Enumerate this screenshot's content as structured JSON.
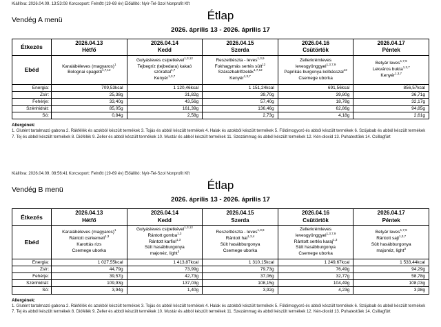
{
  "page": {
    "background": "#ffffff",
    "border_color": "#000000",
    "text_color": "#000000"
  },
  "sections": [
    {
      "meta": "Kiállítva: 2026.04.09. 13:53:08 Korcsoport: Felnőtt (19-69 év) Előállító: Nyír-Tel-Szol Nonprofit Kft",
      "menu_name": "Vendég A menü",
      "title": "Étlap",
      "date_range": "2026. április 13 - 2026. április 17",
      "table": {
        "meal_col_header": "Étkezés",
        "meal_row_label": "Ebéd",
        "nutrient_labels": [
          "Energia:",
          "Zsír:",
          "Fehérje:",
          "Szénhidrát:",
          "Só:"
        ],
        "days": [
          {
            "date": "2026.04.13",
            "day": "Hétfő",
            "dishes": [
              {
                "name": "Karalábéleves (magyaros)",
                "allergens": "1"
              },
              {
                "name": "Bolognai spagetti",
                "allergens": "1,7,12"
              }
            ],
            "nutrients": [
              "709,53kcal",
              "25,38g",
              "33,40g",
              "85,05g",
              "0,84g"
            ]
          },
          {
            "date": "2026.04.14",
            "day": "Kedd",
            "dishes": [
              {
                "name": "Gulyásleves csipetkével",
                "allergens": "1,3,12"
              },
              {
                "name": "Tejbegríz (tejbedara) kakaó szórattal",
                "allergens": "1,7"
              },
              {
                "name": "Kenyér",
                "allergens": "1,3,7"
              }
            ],
            "nutrients": [
              "1 120,46kcal",
              "31,82g",
              "43,56g",
              "161,39g",
              "2,58g"
            ]
          },
          {
            "date": "2026.04.15",
            "day": "Szerda",
            "dishes": [
              {
                "name": "Reszelttészta - leves",
                "allergens": "1,3,9"
              },
              {
                "name": "Fokhagymás sertés sült",
                "allergens": "12"
              },
              {
                "name": "Szárazbabfőzelék",
                "allergens": "1,7,12"
              },
              {
                "name": "Kenyér",
                "allergens": "1,3,7"
              }
            ],
            "nutrients": [
              "1 151,24kcal",
              "39,70g",
              "57,40g",
              "136,46g",
              "2,73g"
            ]
          },
          {
            "date": "2026.04.16",
            "day": "Csütörtök",
            "dishes": [
              {
                "name": "Zellerkrémleves levesgyönggyel",
                "allergens": "1,3,7,9"
              },
              {
                "name": "Paprikás burgonya kolbásszal",
                "allergens": "12"
              },
              {
                "name": "Csemege uborka",
                "allergens": ""
              }
            ],
            "nutrients": [
              "691,56kcal",
              "39,80g",
              "18,78g",
              "62,86g",
              "4,18g"
            ]
          },
          {
            "date": "2026.04.17",
            "day": "Péntek",
            "dishes": [
              {
                "name": "Betyár leves",
                "allergens": "1,7,9"
              },
              {
                "name": "Lekváros bukta",
                "allergens": "1,3,7"
              },
              {
                "name": "Kenyér",
                "allergens": "1,3,7"
              }
            ],
            "nutrients": [
              "856,57kcal",
              "36,71g",
              "32,17g",
              "94,85g",
              "2,61g"
            ]
          }
        ]
      },
      "allergens_heading": "Allergének:",
      "allergens_text": "1. Glutént tartalmazó gabona 2. Rákfélék és azokból készült termékek 3. Tojás és abból készült termékek 4. Halak és azokból készült termékek 5. Földimogyoró és abból készült termékek 6. Szójabab és abból készült termékek 7. Tej és abból készült termékek 8. Diófélék 9. Zeller és abból készült termékek 10. Mustár és abból készült termékek 11. Szezámmag és abból készült termékek 12. Kén-dioxid 13. Puhatestűek 14. Csillagfürt"
    },
    {
      "meta": "Kiállítva: 2026.04.09. 08:56:41 Korcsoport: Felnőtt (19-69 év) Előállító: Nyír-Tel-Szol Nonprofit Kft",
      "menu_name": "Vendég B menü",
      "title": "Étlap",
      "date_range": "2026. április 13 - 2026. április 17",
      "table": {
        "meal_col_header": "Étkezés",
        "meal_row_label": "Ebéd",
        "nutrient_labels": [
          "Energia:",
          "Zsír:",
          "Fehérje:",
          "Szénhidrát:",
          "Só:"
        ],
        "days": [
          {
            "date": "2026.04.13",
            "day": "Hétfő",
            "dishes": [
              {
                "name": "Karalábéleves (magyaros)",
                "allergens": "1"
              },
              {
                "name": "Rántott csirkemell",
                "allergens": "1,3"
              },
              {
                "name": "Karottás rizs",
                "allergens": ""
              },
              {
                "name": "Csemege uborka",
                "allergens": ""
              }
            ],
            "nutrients": [
              "1 027,55kcal",
              "44,79g",
              "39,57g",
              "109,93g",
              "3,94g"
            ]
          },
          {
            "date": "2026.04.14",
            "day": "Kedd",
            "dishes": [
              {
                "name": "Gulyásleves csipetkével",
                "allergens": "1,3,12"
              },
              {
                "name": "Rántott gomba",
                "allergens": "1,3"
              },
              {
                "name": "Rántott karfiol",
                "allergens": "1,3"
              },
              {
                "name": "Sült hasábburgonya",
                "allergens": ""
              },
              {
                "name": "majonéz, light",
                "allergens": "3"
              }
            ],
            "nutrients": [
              "1 413,87kcal",
              "73,99g",
              "42,73g",
              "137,03g",
              "1,40g"
            ]
          },
          {
            "date": "2026.04.15",
            "day": "Szerda",
            "dishes": [
              {
                "name": "Reszelttészta - leves",
                "allergens": "1,3,9"
              },
              {
                "name": "Rántott hal",
                "allergens": "1,3,4"
              },
              {
                "name": "Sült hasábburgonya",
                "allergens": ""
              },
              {
                "name": "Csemege uborka",
                "allergens": ""
              }
            ],
            "nutrients": [
              "1 310,15kcal",
              "79,73g",
              "37,06g",
              "108,15g",
              "3,92g"
            ]
          },
          {
            "date": "2026.04.16",
            "day": "Csütörtök",
            "dishes": [
              {
                "name": "Zellerkrémleves levesgyönggyel",
                "allergens": "1,3,7,9"
              },
              {
                "name": "Rántott sertés karaj",
                "allergens": "1,3"
              },
              {
                "name": "Sült hasábburgonya",
                "allergens": ""
              },
              {
                "name": "Csemege uborka",
                "allergens": ""
              }
            ],
            "nutrients": [
              "1 249,67kcal",
              "76,49g",
              "32,77g",
              "104,49g",
              "4,23g"
            ]
          },
          {
            "date": "2026.04.17",
            "day": "Péntek",
            "dishes": [
              {
                "name": "Betyár leves",
                "allergens": "1,7,9"
              },
              {
                "name": "Rántott sajt",
                "allergens": "1,3,7"
              },
              {
                "name": "Sült hasábburgonya",
                "allergens": ""
              },
              {
                "name": "majonéz, light",
                "allergens": "3"
              }
            ],
            "nutrients": [
              "1 533,44kcal",
              "94,29g",
              "58,78g",
              "108,03g",
              "3,98g"
            ]
          }
        ]
      },
      "allergens_heading": "Allergének:",
      "allergens_text": "1. Glutént tartalmazó gabona 2. Rákfélék és azokból készült termékek 3. Tojás és abból készült termékek 4. Halak és azokból készült termékek 5. Földimogyoró és abból készült termékek 6. Szójabab és abból készült termékek 7. Tej és abból készült termékek 8. Diófélék 9. Zeller és abból készült termékek 10. Mustár és abból készült termékek 11. Szezámmag és abból készült termékek 12. Kén-dioxid 13. Puhatestűek 14. Csillagfürt"
    }
  ]
}
